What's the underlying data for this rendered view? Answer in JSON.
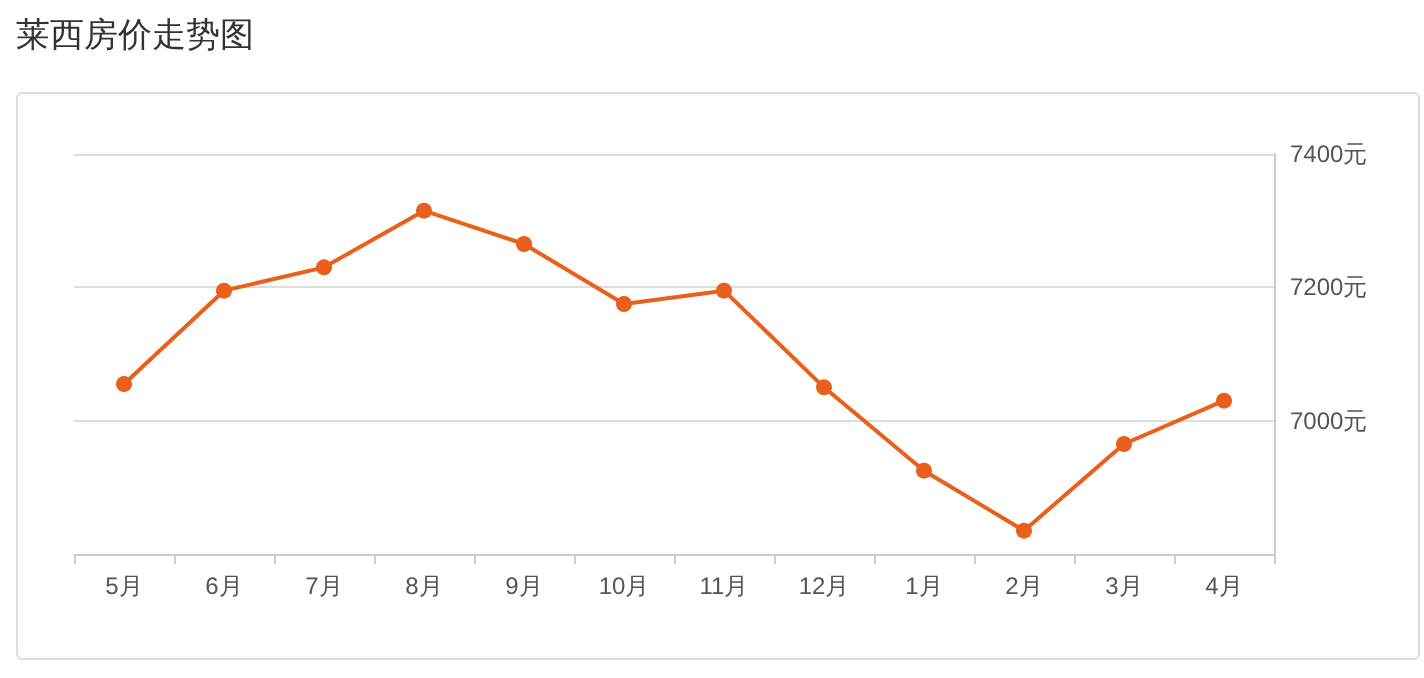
{
  "chart_data": {
    "type": "line",
    "title": "莱西房价走势图",
    "categories": [
      "5月",
      "6月",
      "7月",
      "8月",
      "9月",
      "10月",
      "11月",
      "12月",
      "1月",
      "2月",
      "3月",
      "4月"
    ],
    "series": [
      {
        "color": "#e8601c",
        "values": [
          7055,
          7195,
          7230,
          7315,
          7265,
          7175,
          7195,
          7050,
          6925,
          6835,
          6965,
          7030
        ]
      }
    ],
    "ylim": [
      6800,
      7400
    ],
    "yticks": [
      {
        "value": 6800,
        "label": null
      },
      {
        "value": 7000,
        "label": "7000元"
      },
      {
        "value": 7200,
        "label": "7200元"
      },
      {
        "value": 7400,
        "label": "7400元"
      }
    ],
    "grid": "y",
    "marker": "circle",
    "line_style": "solid"
  }
}
